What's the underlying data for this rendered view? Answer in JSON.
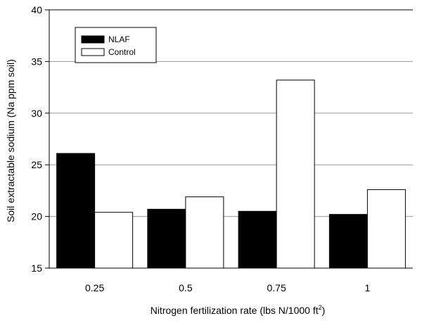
{
  "chart_data": {
    "type": "bar",
    "categories": [
      "0.25",
      "0.5",
      "0.75",
      "1"
    ],
    "series": [
      {
        "name": "NLAF",
        "values": [
          26.1,
          20.7,
          20.5,
          20.2
        ],
        "color": "#000000"
      },
      {
        "name": "Control",
        "values": [
          20.4,
          21.9,
          33.2,
          22.6
        ],
        "color": "#ffffff"
      }
    ],
    "ylabel": "Soil extractable sodium (Na ppm soil)",
    "xlabel": "Nitrogen fertilization rate (lbs N/1000 ft",
    "xlabel_superscript": "2",
    "xlabel_suffix": ")",
    "ylim": [
      15,
      40
    ],
    "yticks": [
      15,
      20,
      25,
      30,
      35,
      40
    ],
    "grid": true,
    "legend_position": "top-left"
  }
}
